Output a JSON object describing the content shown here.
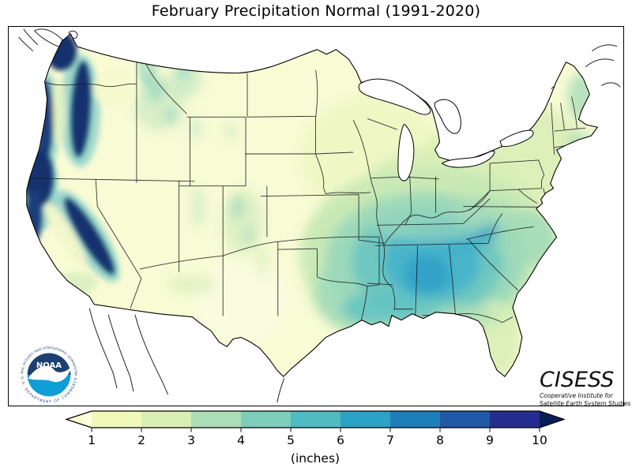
{
  "title": "February Precipitation Normal (1991-2020)",
  "colorbar": {
    "ticks": [
      "1",
      "2",
      "3",
      "4",
      "5",
      "6",
      "7",
      "8",
      "9",
      "10"
    ],
    "unit_label": "(inches)",
    "segment_colors": [
      "#f0f9b8",
      "#d9efb2",
      "#abdeb7",
      "#7fcdbb",
      "#4fbcc2",
      "#2ba3c6",
      "#1e7fb8",
      "#2259a6",
      "#252e90"
    ],
    "under_color": "#ffffd9",
    "over_color": "#091e58"
  },
  "noaa_logo": {
    "acronym": "NOAA",
    "ring_top_text": "NATIONAL OCEANIC AND ATMOSPHERIC ADMINISTRATION",
    "ring_bottom_text": "U.S. DEPARTMENT OF COMMERCE",
    "dark_color": "#1e3f72",
    "light_color": "#0f9ed5"
  },
  "cisess_logo": {
    "acronym": "CISESS",
    "subtitle_line1": "Cooperative Institute for",
    "subtitle_line2": "Satellite Earth System Studies"
  },
  "chart_data": {
    "type": "choropleth_map",
    "title": "February Precipitation Normal (1991-2020)",
    "region": "Contiguous United States",
    "colormap": "YlGnBu",
    "colorbar_ticks": [
      1,
      2,
      3,
      4,
      5,
      6,
      7,
      8,
      9,
      10
    ],
    "unit": "inches",
    "high_value_areas": "Pacific Northwest coast, Cascades, Sierra Nevada, Gulf Coast South (MS/AL/TN), southern Appalachians",
    "low_value_areas": "Interior West, Great Plains, West Texas"
  }
}
